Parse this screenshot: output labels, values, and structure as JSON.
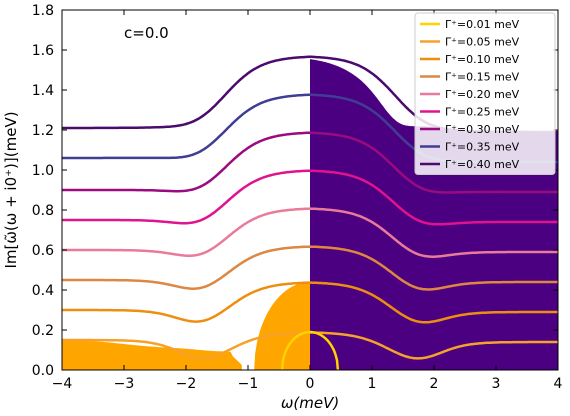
{
  "chart_data": {
    "type": "line",
    "annotation": "c=0.0",
    "xlabel": "ω(meV)",
    "ylabel": "Im[ω̃(ω + i0⁺)](meV)",
    "xlim": [
      -4,
      4
    ],
    "ylim": [
      0,
      1.8
    ],
    "xticks": [
      "−4",
      "−3",
      "−2",
      "−1",
      "0",
      "1",
      "2",
      "3",
      "4"
    ],
    "yticks": [
      "0.0",
      "0.2",
      "0.4",
      "0.6",
      "0.8",
      "1.0",
      "1.2",
      "1.4",
      "1.6",
      "1.8"
    ],
    "legend_position": "top-right",
    "series": [
      {
        "name": "Γ⁺=0.01 meV",
        "color": "#ffd200",
        "gamma": 0.01
      },
      {
        "name": "Γ⁺=0.05 meV",
        "color": "#f6a12a",
        "gamma": 0.05
      },
      {
        "name": "Γ⁺=0.10 meV",
        "color": "#ee8e10",
        "gamma": 0.1
      },
      {
        "name": "Γ⁺=0.15 meV",
        "color": "#dd8742",
        "gamma": 0.15
      },
      {
        "name": "Γ⁺=0.20 meV",
        "color": "#ea7a9a",
        "gamma": 0.2
      },
      {
        "name": "Γ⁺=0.25 meV",
        "color": "#e0138f",
        "gamma": 0.25
      },
      {
        "name": "Γ⁺=0.30 meV",
        "color": "#9a0a80",
        "gamma": 0.3
      },
      {
        "name": "Γ⁺=0.35 meV",
        "color": "#3f3e92",
        "gamma": 0.35
      },
      {
        "name": "Γ⁺=0.40 meV",
        "color": "#4b0a6e",
        "gamma": 0.4
      }
    ],
    "left_plateau": [
      0.15,
      0.3,
      0.45,
      0.6,
      0.75,
      0.9,
      1.06,
      1.21
    ],
    "peak_at_zero": [
      0.19,
      0.44,
      0.62,
      0.81,
      1.0,
      1.19,
      1.38,
      1.57
    ],
    "right_plateau": [
      0.14,
      0.29,
      0.44,
      0.59,
      0.74,
      0.89,
      1.04,
      1.19
    ],
    "fill_colors": {
      "orange": "#ffa500",
      "purple": "#4b0082"
    }
  }
}
